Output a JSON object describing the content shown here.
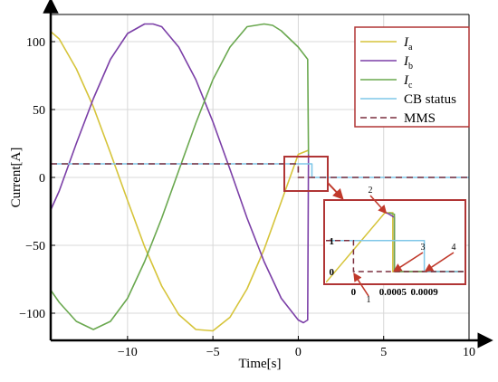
{
  "chart_data": {
    "type": "line",
    "xlabel": "Time[s]",
    "ylabel": "Current[A]",
    "xlim": [
      -14.5,
      10
    ],
    "ylim": [
      -120,
      120
    ],
    "xticks": [
      -10,
      -5,
      0,
      5,
      10
    ],
    "xtick_labels": [
      "−10",
      "−5",
      "0",
      "5",
      "10"
    ],
    "yticks": [
      -100,
      -50,
      0,
      50,
      100
    ],
    "ytick_labels": [
      "−100",
      "−50",
      "0",
      "50",
      "100"
    ],
    "grid": true,
    "legend_position": "top-right",
    "series": [
      {
        "name": "I",
        "sub": "a",
        "color": "#d6c43a",
        "style": "solid",
        "x": [
          -14.5,
          -14,
          -13,
          -12,
          -11,
          -10,
          -9,
          -8,
          -7,
          -6,
          -5,
          -4,
          -3,
          -2,
          -1,
          0,
          0.6
        ],
        "y": [
          107.5,
          102,
          80,
          52,
          18,
          -17,
          -51,
          -80,
          -101,
          -112,
          -113,
          -103,
          -82,
          -53,
          -18,
          17,
          20
        ]
      },
      {
        "name": "I",
        "sub": "b",
        "color": "#7b3fa7",
        "style": "solid",
        "x": [
          -14.5,
          -14,
          -13,
          -12,
          -11,
          -10,
          -9,
          -8.5,
          -8,
          -7,
          -6,
          -5,
          -4,
          -3,
          -2,
          -1,
          0,
          0.3,
          0.55,
          0.6
        ],
        "y": [
          -24,
          -10,
          25,
          58,
          87,
          106,
          113,
          113,
          111,
          96,
          72,
          41,
          6,
          -30,
          -62,
          -89,
          -105,
          -107,
          -105,
          17
        ]
      },
      {
        "name": "I",
        "sub": "c",
        "color": "#6aa84f",
        "style": "solid",
        "x": [
          -14.5,
          -14,
          -13,
          -12,
          -11,
          -10,
          -9,
          -8,
          -7,
          -6,
          -5,
          -4,
          -3,
          -2,
          -1.5,
          -1,
          0,
          0.55,
          0.6
        ],
        "y": [
          -83,
          -92,
          -106,
          -112,
          -106,
          -89,
          -62,
          -30,
          5,
          40,
          72,
          96,
          111,
          113,
          112,
          108,
          96,
          87,
          17
        ]
      },
      {
        "name": "CB status",
        "sub": "",
        "color": "#7fc7e8",
        "style": "solid",
        "x": [
          -14.5,
          0.8,
          0.8,
          10
        ],
        "y": [
          10,
          10,
          0,
          0
        ]
      },
      {
        "name": "MMS",
        "sub": "",
        "color": "#7a2e3e",
        "style": "dashed",
        "x": [
          -14.5,
          0,
          0,
          10
        ],
        "y": [
          10,
          10,
          0,
          0
        ]
      }
    ],
    "inset": {
      "xlim": [
        -0.00035,
        0.0014
      ],
      "ylim": [
        -0.35,
        2.25
      ],
      "xtick_labels": [
        "0",
        "0.0005",
        "0.0009"
      ],
      "xticks": [
        0,
        0.0005,
        0.0009
      ],
      "ytick_labels": [
        "0",
        "1"
      ],
      "yticks": [
        0,
        1
      ],
      "callouts": [
        "1",
        "2",
        "3",
        "4"
      ],
      "series": [
        {
          "color": "#d6c43a",
          "x": [
            -0.00035,
            0.0004,
            0.0005,
            0.0005,
            0.0014
          ],
          "y": [
            -0.35,
            1.9,
            1.9,
            0,
            0
          ]
        },
        {
          "color": "#7b3fa7",
          "x": [
            0.00042,
            0.00052,
            0.00052,
            0.0014
          ],
          "y": [
            1.9,
            1.75,
            0,
            0
          ]
        },
        {
          "color": "#6aa84f",
          "x": [
            0.00045,
            0.00052,
            0.00052,
            0.0014
          ],
          "y": [
            1.9,
            1.85,
            0,
            0
          ]
        },
        {
          "color": "#7fc7e8",
          "x": [
            -0.00035,
            0.0009,
            0.0009,
            0.0014
          ],
          "y": [
            1,
            1,
            0,
            0
          ]
        },
        {
          "color": "#7a2e3e",
          "dashed": true,
          "x": [
            -0.00035,
            0,
            0,
            0.0014
          ],
          "y": [
            1,
            1,
            0,
            0
          ]
        }
      ]
    }
  },
  "colors": {
    "zoom_box": "#b03535",
    "arrow": "#c0392b",
    "grid": "#d8d8d8"
  }
}
